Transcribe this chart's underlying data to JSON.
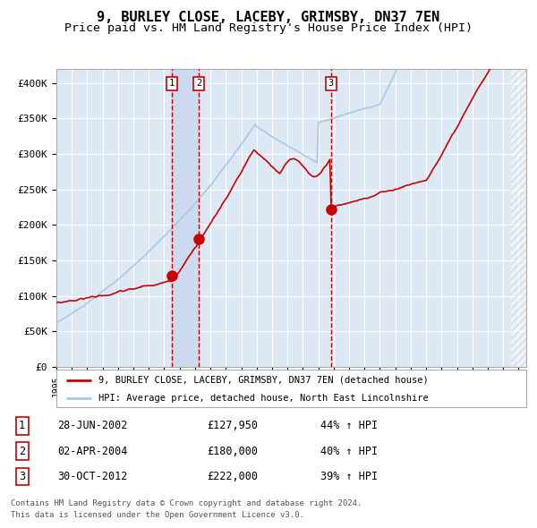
{
  "title": "9, BURLEY CLOSE, LACEBY, GRIMSBY, DN37 7EN",
  "subtitle": "Price paid vs. HM Land Registry's House Price Index (HPI)",
  "ylim": [
    0,
    420000
  ],
  "yticks": [
    0,
    50000,
    100000,
    150000,
    200000,
    250000,
    300000,
    350000,
    400000
  ],
  "ytick_labels": [
    "£0",
    "£50K",
    "£100K",
    "£150K",
    "£200K",
    "£250K",
    "£300K",
    "£350K",
    "£400K"
  ],
  "xlim_start": 1995.0,
  "xlim_end": 2025.5,
  "background_color": "#ffffff",
  "plot_bg_color": "#dce9f5",
  "grid_color": "#ffffff",
  "hpi_line_color": "#a8c8e8",
  "price_line_color": "#cc0000",
  "sale_dot_color": "#cc0000",
  "sale_marker_size": 8,
  "transactions": [
    {
      "date_decimal": 2002.49,
      "price": 127950,
      "label": "1"
    },
    {
      "date_decimal": 2004.25,
      "price": 180000,
      "label": "2"
    },
    {
      "date_decimal": 2012.83,
      "price": 222000,
      "label": "3"
    }
  ],
  "transaction_vline_color": "#cc0000",
  "shade_color": "#c8d8ee",
  "legend_price_label": "9, BURLEY CLOSE, LACEBY, GRIMSBY, DN37 7EN (detached house)",
  "legend_hpi_label": "HPI: Average price, detached house, North East Lincolnshire",
  "table_data": [
    {
      "num": "1",
      "date": "28-JUN-2002",
      "price": "£127,950",
      "change": "44% ↑ HPI"
    },
    {
      "num": "2",
      "date": "02-APR-2004",
      "price": "£180,000",
      "change": "40% ↑ HPI"
    },
    {
      "num": "3",
      "date": "30-OCT-2012",
      "price": "£222,000",
      "change": "39% ↑ HPI"
    }
  ],
  "footnote1": "Contains HM Land Registry data © Crown copyright and database right 2024.",
  "footnote2": "This data is licensed under the Open Government Licence v3.0.",
  "hatch_region_start": 2024.5,
  "title_fontsize": 11,
  "subtitle_fontsize": 9.5
}
